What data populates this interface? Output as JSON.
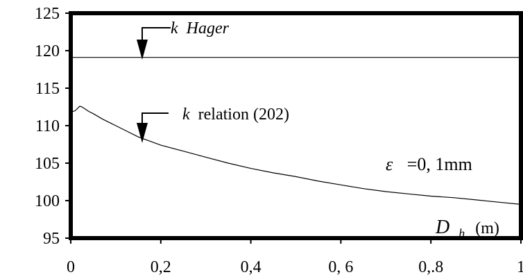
{
  "chart_data": {
    "type": "line",
    "title": "",
    "xlabel_var": "D",
    "xlabel_sub": "h",
    "xlabel_unit": "(m)",
    "ylabel": "",
    "xlim": [
      0,
      1
    ],
    "ylim": [
      95,
      125
    ],
    "x_ticks": [
      0,
      0.2,
      0.4,
      0.6,
      0.8,
      1
    ],
    "x_tick_labels": [
      "0",
      "0,2",
      "0,4",
      "0, 6",
      "0,.8",
      "1"
    ],
    "y_ticks": [
      95,
      100,
      105,
      110,
      115,
      120,
      125
    ],
    "y_tick_labels": [
      "95",
      "100",
      "105",
      "110",
      "115",
      "120",
      "125"
    ],
    "grid": false,
    "series": [
      {
        "name": "k Hager",
        "x": [
          0,
          1
        ],
        "y": [
          119.1,
          119.1
        ]
      },
      {
        "name": "k relation (202)",
        "x": [
          0.0,
          0.01,
          0.02,
          0.025,
          0.04,
          0.05,
          0.07,
          0.09,
          0.1,
          0.12,
          0.15,
          0.2,
          0.25,
          0.3,
          0.35,
          0.4,
          0.45,
          0.5,
          0.55,
          0.6,
          0.65,
          0.7,
          0.75,
          0.8,
          0.85,
          0.9,
          0.95,
          1.0
        ],
        "y": [
          111.8,
          112.0,
          112.6,
          112.5,
          111.9,
          111.6,
          110.9,
          110.3,
          110.0,
          109.4,
          108.5,
          107.4,
          106.6,
          105.8,
          105.0,
          104.3,
          103.7,
          103.2,
          102.6,
          102.1,
          101.6,
          101.2,
          100.9,
          100.6,
          100.4,
          100.1,
          99.8,
          99.5
        ]
      }
    ],
    "annotations": {
      "hager_k": "k",
      "hager_name": "Hager",
      "relation_k": "k",
      "relation_text": "relation (202)",
      "epsilon_symbol": "ε",
      "epsilon_value": "=0, 1mm"
    }
  }
}
